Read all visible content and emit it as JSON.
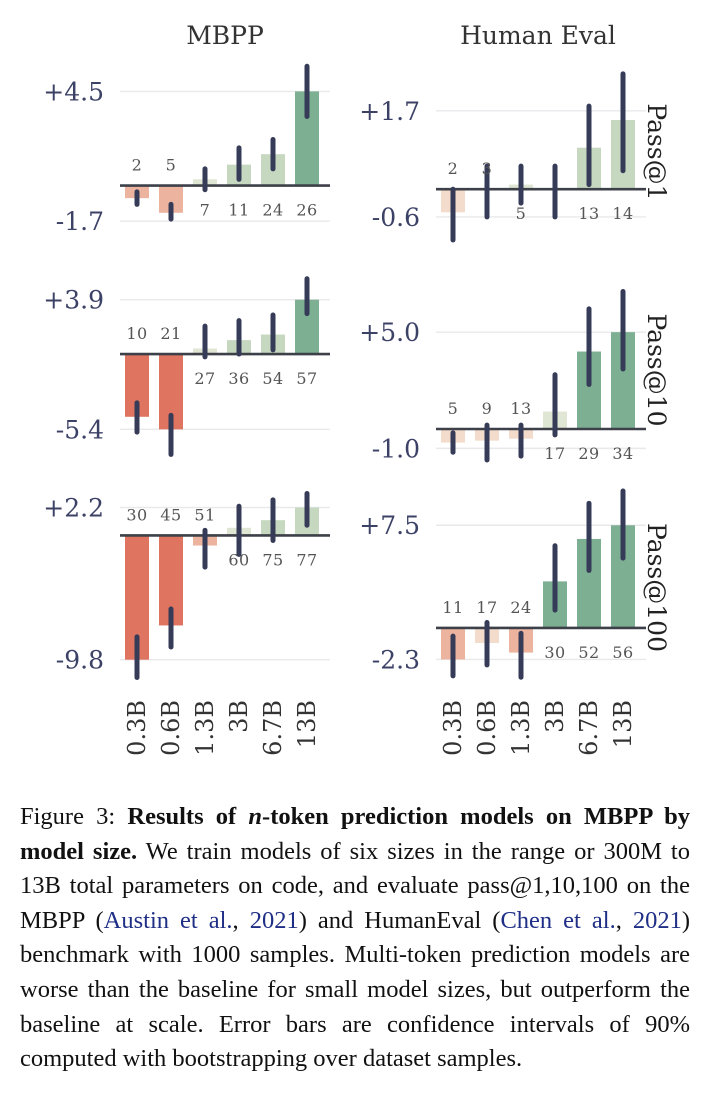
{
  "chart_data": {
    "type": "bar",
    "value_semantics": "relative improvement of multi-token prediction over baseline (bars), with 90% confidence intervals (error bars); annotated numbers are per-size values printed above/below bars",
    "columns": [
      "MBPP",
      "Human Eval"
    ],
    "rows": [
      "Pass@1",
      "Pass@10",
      "Pass@100"
    ],
    "categories": [
      "0.3B",
      "0.6B",
      "1.3B",
      "3B",
      "6.7B",
      "13B"
    ],
    "colors": {
      "strong_negative": "#df7461",
      "mild_negative": "#ecb49f",
      "faint_negative": "#f3dccb",
      "faint_positive": "#dfe6d3",
      "mild_positive": "#c6d8c0",
      "strong_positive": "#7daf93",
      "error_bar": "#363b57",
      "axis_text": "#3c4166",
      "baseline": "#3d4048",
      "grid": "#e9e9ec"
    },
    "panels": [
      {
        "column": "MBPP",
        "row": "Pass@1",
        "ylim": [
          -2.6,
          6.0
        ],
        "ticks": [
          {
            "value": 4.5,
            "label": "+4.5"
          },
          {
            "value": -1.7,
            "label": "-1.7"
          }
        ],
        "values": [
          -0.6,
          -1.3,
          0.3,
          1.0,
          1.5,
          4.5
        ],
        "err": [
          [
            -0.9,
            -0.3
          ],
          [
            -1.6,
            -0.9
          ],
          [
            -0.2,
            0.8
          ],
          [
            0.3,
            1.8
          ],
          [
            0.8,
            2.2
          ],
          [
            3.3,
            5.7
          ]
        ],
        "annotations": [
          {
            "label": "2",
            "pos": "above"
          },
          {
            "label": "5",
            "pos": "above"
          },
          {
            "label": "7",
            "pos": "below"
          },
          {
            "label": "11",
            "pos": "below"
          },
          {
            "label": "24",
            "pos": "below"
          },
          {
            "label": "26",
            "pos": "below"
          }
        ],
        "bar_colors": [
          "mild_negative",
          "mild_negative",
          "faint_positive",
          "mild_positive",
          "mild_positive",
          "strong_positive"
        ]
      },
      {
        "column": "Human Eval",
        "row": "Pass@1",
        "ylim": [
          -1.1,
          2.8
        ],
        "ticks": [
          {
            "value": 1.7,
            "label": "+1.7"
          },
          {
            "value": -0.6,
            "label": "-0.6"
          }
        ],
        "values": [
          -0.5,
          0.0,
          0.1,
          0.0,
          0.9,
          1.5
        ],
        "err": [
          [
            -1.1,
            0.0
          ],
          [
            -0.6,
            0.5
          ],
          [
            -0.3,
            0.5
          ],
          [
            -0.6,
            0.5
          ],
          [
            0.1,
            1.8
          ],
          [
            0.4,
            2.5
          ]
        ],
        "annotations": [
          {
            "label": "2",
            "pos": "above"
          },
          {
            "label": "3",
            "pos": "above"
          },
          {
            "label": "5",
            "pos": "below"
          },
          {
            "label": "",
            "pos": "below"
          },
          {
            "label": "13",
            "pos": "below"
          },
          {
            "label": "14",
            "pos": "below"
          }
        ],
        "bar_colors": [
          "faint_negative",
          "faint_negative",
          "faint_positive",
          "faint_positive",
          "mild_positive",
          "mild_positive"
        ]
      },
      {
        "column": "MBPP",
        "row": "Pass@10",
        "ylim": [
          -7.6,
          5.6
        ],
        "ticks": [
          {
            "value": 3.9,
            "label": "+3.9"
          },
          {
            "value": -5.4,
            "label": "-5.4"
          }
        ],
        "values": [
          -4.5,
          -5.4,
          0.4,
          1.0,
          1.4,
          3.9
        ],
        "err": [
          [
            -5.6,
            -3.5
          ],
          [
            -7.2,
            -4.4
          ],
          [
            -0.2,
            2.0
          ],
          [
            0.0,
            2.4
          ],
          [
            0.3,
            2.8
          ],
          [
            2.9,
            5.4
          ]
        ],
        "annotations": [
          {
            "label": "10",
            "pos": "above"
          },
          {
            "label": "21",
            "pos": "above"
          },
          {
            "label": "27",
            "pos": "below"
          },
          {
            "label": "36",
            "pos": "below"
          },
          {
            "label": "54",
            "pos": "below"
          },
          {
            "label": "57",
            "pos": "below"
          }
        ],
        "bar_colors": [
          "strong_negative",
          "strong_negative",
          "faint_positive",
          "mild_positive",
          "mild_positive",
          "strong_positive"
        ]
      },
      {
        "column": "Human Eval",
        "row": "Pass@10",
        "ylim": [
          -1.6,
          7.9
        ],
        "ticks": [
          {
            "value": 5.0,
            "label": "+5.0"
          },
          {
            "value": -1.0,
            "label": "-1.0"
          }
        ],
        "values": [
          -0.7,
          -0.6,
          -0.5,
          0.9,
          4.0,
          5.0
        ],
        "err": [
          [
            -1.2,
            -0.2
          ],
          [
            -1.6,
            0.2
          ],
          [
            -1.4,
            0.2
          ],
          [
            -0.3,
            2.8
          ],
          [
            2.3,
            6.2
          ],
          [
            3.1,
            7.1
          ]
        ],
        "annotations": [
          {
            "label": "5",
            "pos": "above"
          },
          {
            "label": "9",
            "pos": "above"
          },
          {
            "label": "13",
            "pos": "above"
          },
          {
            "label": "17",
            "pos": "below"
          },
          {
            "label": "29",
            "pos": "below"
          },
          {
            "label": "34",
            "pos": "below"
          }
        ],
        "bar_colors": [
          "faint_negative",
          "faint_negative",
          "faint_negative",
          "faint_positive",
          "strong_positive",
          "strong_positive"
        ]
      },
      {
        "column": "MBPP",
        "row": "Pass@100",
        "ylim": [
          -11.4,
          3.5
        ],
        "ticks": [
          {
            "value": 2.2,
            "label": "+2.2"
          },
          {
            "value": -9.8,
            "label": "-9.8"
          }
        ],
        "values": [
          -9.8,
          -7.1,
          -0.8,
          0.6,
          1.2,
          2.2
        ],
        "err": [
          [
            -11.2,
            -8.0
          ],
          [
            -8.8,
            -5.8
          ],
          [
            -2.5,
            0.4
          ],
          [
            -1.5,
            2.3
          ],
          [
            -0.4,
            2.8
          ],
          [
            0.8,
            3.3
          ]
        ],
        "annotations": [
          {
            "label": "30",
            "pos": "above"
          },
          {
            "label": "45",
            "pos": "above"
          },
          {
            "label": "51",
            "pos": "above"
          },
          {
            "label": "60",
            "pos": "below"
          },
          {
            "label": "75",
            "pos": "below"
          },
          {
            "label": "77",
            "pos": "below"
          }
        ],
        "bar_colors": [
          "strong_negative",
          "strong_negative",
          "mild_negative",
          "faint_positive",
          "mild_positive",
          "mild_positive"
        ]
      },
      {
        "column": "Human Eval",
        "row": "Pass@100",
        "ylim": [
          -3.8,
          10.0
        ],
        "ticks": [
          {
            "value": 7.5,
            "label": "+7.5"
          },
          {
            "value": -2.3,
            "label": "-2.3"
          }
        ],
        "values": [
          -2.3,
          -1.1,
          -1.8,
          3.4,
          6.5,
          7.5
        ],
        "err": [
          [
            -3.5,
            -0.6
          ],
          [
            -2.7,
            0.4
          ],
          [
            -3.6,
            -0.4
          ],
          [
            1.3,
            6.0
          ],
          [
            4.2,
            9.1
          ],
          [
            5.1,
            10.0
          ]
        ],
        "annotations": [
          {
            "label": "11",
            "pos": "above"
          },
          {
            "label": "17",
            "pos": "above"
          },
          {
            "label": "24",
            "pos": "above"
          },
          {
            "label": "30",
            "pos": "below"
          },
          {
            "label": "52",
            "pos": "below"
          },
          {
            "label": "56",
            "pos": "below"
          }
        ],
        "bar_colors": [
          "mild_negative",
          "faint_negative",
          "mild_negative",
          "strong_positive",
          "strong_positive",
          "strong_positive"
        ]
      }
    ]
  },
  "caption": {
    "label": "Figure 3: ",
    "bold_1": "Results of ",
    "bold_italic": "n",
    "bold_2": "-token prediction models on MBPP by model size.",
    "text_1": " We train models of six sizes in the range or 300M to 13B total parameters on code, and evaluate pass@1,10,100 on the MBPP (",
    "cite_1a": "Austin et al.",
    "sep_1": ", ",
    "cite_1b": "2021",
    "text_2": ") and HumanEval (",
    "cite_2a": "Chen et al.",
    "sep_2": ", ",
    "cite_2b": "2021",
    "text_3": ") benchmark with 1000 samples. Multi-token prediction models are worse than the baseline for small model sizes, but outperform the baseline at scale. Error bars are confidence intervals of 90% computed with bootstrapping over dataset samples."
  }
}
